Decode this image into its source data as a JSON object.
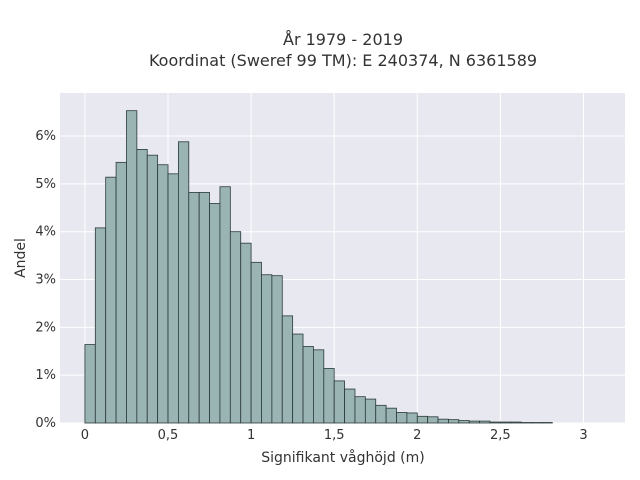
{
  "chart_data": {
    "type": "bar",
    "title_line1": "År 1979 - 2019",
    "title_line2": "Koordinat (Sweref 99 TM): E 240374, N 6361589",
    "xlabel": "Signifikant våghöjd (m)",
    "ylabel": "Andel",
    "xlim": [
      -0.15,
      3.25
    ],
    "ylim": [
      0,
      0.069
    ],
    "bin_width": 0.0625,
    "bin_start": 0.0,
    "x_ticks": [
      {
        "value": 0,
        "label": "0"
      },
      {
        "value": 0.5,
        "label": "0,5"
      },
      {
        "value": 1,
        "label": "1"
      },
      {
        "value": 1.5,
        "label": "1,5"
      },
      {
        "value": 2,
        "label": "2"
      },
      {
        "value": 2.5,
        "label": "2,5"
      },
      {
        "value": 3,
        "label": "3"
      }
    ],
    "y_ticks": [
      {
        "value": 0,
        "label": "0%"
      },
      {
        "value": 0.01,
        "label": "1%"
      },
      {
        "value": 0.02,
        "label": "2%"
      },
      {
        "value": 0.03,
        "label": "3%"
      },
      {
        "value": 0.04,
        "label": "4%"
      },
      {
        "value": 0.05,
        "label": "5%"
      },
      {
        "value": 0.06,
        "label": "6%"
      }
    ],
    "values": [
      0.0164,
      0.0408,
      0.0514,
      0.0545,
      0.0653,
      0.0572,
      0.056,
      0.054,
      0.0521,
      0.0588,
      0.0482,
      0.0482,
      0.0459,
      0.0494,
      0.04,
      0.0376,
      0.0336,
      0.031,
      0.0308,
      0.0224,
      0.0186,
      0.016,
      0.0153,
      0.0114,
      0.0088,
      0.0071,
      0.0055,
      0.005,
      0.0037,
      0.0031,
      0.0022,
      0.0021,
      0.0014,
      0.0013,
      0.0008,
      0.0007,
      0.0005,
      0.0004,
      0.0004,
      0.0002,
      0.0002,
      0.0002,
      0.0001,
      0.0001,
      0.0001
    ],
    "grid": true,
    "legend": "none",
    "colors": {
      "plot_background": "#e8e8f1",
      "bar_fill": "#9ab3b3",
      "bar_edge": "#2a3a3a",
      "grid": "#ffffff",
      "text": "#333333"
    }
  }
}
